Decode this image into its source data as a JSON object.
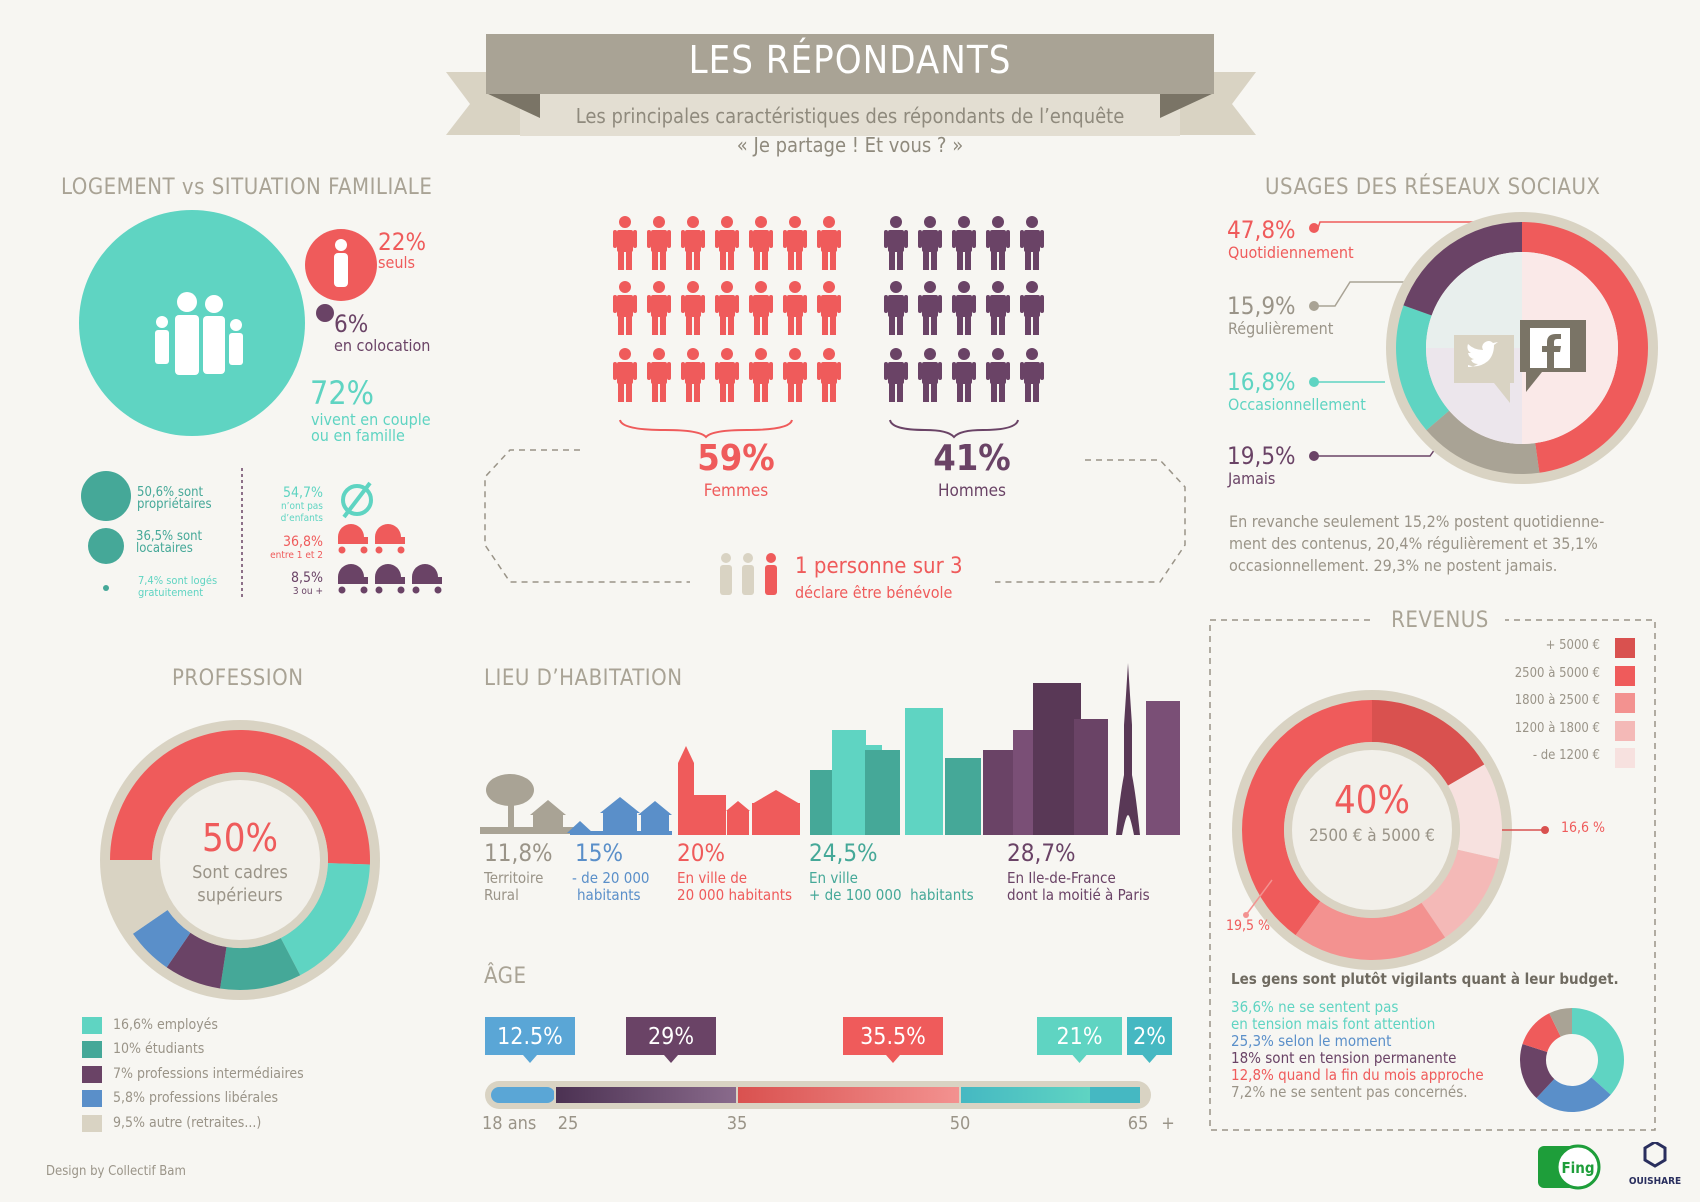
{
  "header": {
    "title": "LES RÉPONDANTS",
    "subtitle_line1": "Les principales caractéristiques des répondants de l’enquête",
    "subtitle_line2": "« Je partage ! Et vous ? »"
  },
  "logement": {
    "title": "LOGEMENT vs SITUATION FAMILIALE",
    "alone_pct": "22%",
    "alone_label": "seuls",
    "coloc_pct": "6%",
    "coloc_label": "en colocation",
    "couple_pct": "72%",
    "couple_label1": "vivent en couple",
    "couple_label2": "ou en famille",
    "owners1": "50,6% sont",
    "owners2": "propriétaires",
    "renters1": "36,5% sont",
    "renters2": "locataires",
    "free1": "7,4% sont logés",
    "free2": "gratuitement",
    "nokids_pct": "54,7%",
    "nokids1": "n’ont pas",
    "nokids2": "d’enfants",
    "kids12_pct": "36,8%",
    "kids12": "entre 1 et 2",
    "kids3_pct": "8,5%",
    "kids3": "3 ou +"
  },
  "gender": {
    "women_pct": "59%",
    "women_label": "Femmes",
    "men_pct": "41%",
    "men_label": "Hommes",
    "volunteer1": "1 personne sur 3",
    "volunteer2": "déclare être bénévole",
    "colors": {
      "women": "#ef5b5b",
      "men": "#6a4366"
    }
  },
  "social": {
    "title": "USAGES DES RÉSEAUX SOCIAUX",
    "daily_pct": "47,8%",
    "daily": "Quotidiennement",
    "regular_pct": "15,9%",
    "regular": "Régulièrement",
    "occ_pct": "16,8%",
    "occ": "Occasionnellement",
    "never_pct": "19,5%",
    "never": "Jamais",
    "note1": "En revanche seulement 15,2% postent quotidienne-",
    "note2": "ment des contenus, 20,4% régulièrement et 35,1%",
    "note3": "occasionnellement. 29,3% ne postent jamais."
  },
  "revenus": {
    "title": "REVENUS",
    "legend": [
      "+ 5000 €",
      "2500 à 5000 €",
      "1800 à 2500 €",
      "1200 à 1800 €",
      "- de 1200 €"
    ],
    "center_pct": "40%",
    "center_label": "2500 € à 5000 €",
    "label_a": "16,6 %",
    "label_b": "19,5 %",
    "budget_title": "Les gens sont plutôt vigilants quant à leur budget.",
    "b1": "36,6% ne se sentent pas",
    "b2": "en tension mais font attention",
    "b3": "25,3% selon le moment",
    "b4": "18% sont en tension permanente",
    "b5": "12,8% quand la fin du mois approche",
    "b6": "7,2% ne se sentent pas concernés."
  },
  "profession": {
    "title": "PROFESSION",
    "center_pct": "50%",
    "center1": "Sont cadres",
    "center2": "supérieurs",
    "legend": [
      "16,6% employés",
      "10% étudiants",
      "7% professions intermédiaires",
      "5,8% professions libérales",
      "9,5% autre (retraites...)"
    ]
  },
  "lieu": {
    "title": "LIEU D’HABITATION",
    "rural_pct": "11,8%",
    "rural1": "Territoire",
    "rural2": "Rural",
    "small_pct": "15%",
    "small1": "- de 20 000",
    "small2": "habitants",
    "mid_pct": "20%",
    "mid1": "En ville de",
    "mid2": "20 000 habitants",
    "city_pct": "24,5%",
    "city1": "En ville",
    "city2": "+ de 100 000  habitants",
    "idf_pct": "28,7%",
    "idf1": "En Ile-de-France",
    "idf2": "dont la moitié à Paris"
  },
  "age": {
    "title": "ÂGE",
    "bubbles": [
      "12.5%",
      "29%",
      "35.5%",
      "21%",
      "2%"
    ],
    "ticks": [
      "18 ans",
      "25",
      "35",
      "50",
      "65",
      "+"
    ]
  },
  "footer": {
    "design": "Design by Collectif Bam",
    "logo1": "Fing",
    "logo2": "OUISHARE"
  },
  "chart_data": [
    {
      "type": "pie",
      "title": "USAGES DES RÉSEAUX SOCIAUX",
      "categories": [
        "Quotidiennement",
        "Régulièrement",
        "Occasionnellement",
        "Jamais"
      ],
      "values": [
        47.8,
        15.9,
        16.8,
        19.5
      ],
      "colors": [
        "#ef5b5b",
        "#a9a395",
        "#5fd4c2",
        "#6a4366"
      ]
    },
    {
      "type": "pie",
      "title": "PROFESSION",
      "categories": [
        "Sont cadres supérieurs",
        "employés",
        "étudiants",
        "professions intermédiaires",
        "professions libérales",
        "autre (retraites...)"
      ],
      "values": [
        50,
        16.6,
        10,
        7,
        5.8,
        9.5
      ],
      "colors": [
        "#ef5b5b",
        "#5fd4c2",
        "#45a898",
        "#6a4366",
        "#5a8fc9",
        "#d9d3c3"
      ]
    },
    {
      "type": "pie",
      "title": "REVENUS",
      "categories": [
        "2500 à 5000 €",
        "+ 5000 €",
        "- de 1200 €",
        "1200 à 1800 €",
        "1800 à 2500 €"
      ],
      "values": [
        40,
        16.6,
        12,
        11.9,
        19.5
      ],
      "colors": [
        "#ef5b5b",
        "#d9514f",
        "#f7e1df",
        "#f4b9b7",
        "#f39290"
      ]
    },
    {
      "type": "pie",
      "title": "Les gens sont plutôt vigilants quant à leur budget.",
      "categories": [
        "ne se sentent pas en tension mais font attention",
        "selon le moment",
        "sont en tension permanente",
        "quand la fin du mois approche",
        "ne se sentent pas concernés"
      ],
      "values": [
        36.6,
        25.3,
        18,
        12.8,
        7.2
      ],
      "colors": [
        "#5fd4c2",
        "#5a8fc9",
        "#6a4366",
        "#ef5b5b",
        "#a9a395"
      ]
    },
    {
      "type": "bar",
      "title": "ÂGE",
      "categories": [
        "18-25",
        "25-35",
        "35-50",
        "50-65",
        "65+"
      ],
      "values": [
        12.5,
        29,
        35.5,
        21,
        2
      ],
      "colors": [
        "#5aa6d6",
        "#6a4366",
        "#ef5b5b",
        "#5fd4c2",
        "#45b8c2"
      ]
    },
    {
      "type": "bar",
      "title": "LIEU D’HABITATION",
      "categories": [
        "Territoire Rural",
        "- de 20 000 habitants",
        "En ville de 20 000 habitants",
        "En ville + de 100 000 habitants",
        "En Ile-de-France"
      ],
      "values": [
        11.8,
        15,
        20,
        24.5,
        28.7
      ]
    },
    {
      "type": "bar",
      "title": "Femmes / Hommes",
      "categories": [
        "Femmes",
        "Hommes"
      ],
      "values": [
        59,
        41
      ]
    }
  ]
}
